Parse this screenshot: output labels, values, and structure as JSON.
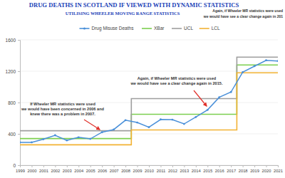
{
  "chart_data": {
    "type": "line",
    "title": "DRUG DEATHS IN SCOTLAND IF VIEWED WITH DYNAMIC STATISTICS",
    "subtitle": "UTILISING WHEELER MOVING RANGE STATISTICS",
    "categories": [
      "1999",
      "2000",
      "2001",
      "2002",
      "2003",
      "2004",
      "2005",
      "2006",
      "2007",
      "2008",
      "2009",
      "2010",
      "2011",
      "2012",
      "2013",
      "2014",
      "2015",
      "2016",
      "2017",
      "2018",
      "2019",
      "2020",
      "2021"
    ],
    "series": [
      {
        "name": "Drug Misuse Deaths",
        "color": "#4a90d9",
        "marker": "circle",
        "values": [
          291,
          292,
          332,
          382,
          317,
          356,
          336,
          421,
          455,
          574,
          545,
          485,
          584,
          581,
          527,
          614,
          706,
          867,
          934,
          1187,
          1264,
          1339,
          1330
        ]
      },
      {
        "name": "XBar",
        "color": "#7ccf4f",
        "line_style": "step",
        "values": [
          340,
          340,
          340,
          340,
          340,
          340,
          340,
          340,
          340,
          340,
          650,
          650,
          650,
          650,
          650,
          650,
          650,
          650,
          650,
          1280,
          1280,
          1280,
          1280
        ]
      },
      {
        "name": "UCL",
        "color": "#9e9e9e",
        "line_style": "step",
        "values": [
          440,
          440,
          440,
          440,
          440,
          440,
          440,
          440,
          440,
          440,
          850,
          850,
          850,
          850,
          850,
          850,
          850,
          850,
          850,
          1380,
          1380,
          1380,
          1380
        ]
      },
      {
        "name": "LCL",
        "color": "#f2b233",
        "line_style": "step",
        "values": [
          260,
          260,
          260,
          260,
          260,
          260,
          260,
          260,
          260,
          260,
          450,
          450,
          450,
          450,
          450,
          450,
          450,
          450,
          450,
          1180,
          1180,
          1180,
          1180
        ]
      }
    ],
    "ylim": [
      0,
      1600
    ],
    "yticks": [
      0,
      400,
      800,
      1200,
      1600
    ],
    "grid": true,
    "legend": "top",
    "annotations": [
      {
        "lines": [
          "Again, if Wheeler MR statistics were used",
          "we would have see a clear change again in 201"
        ]
      },
      {
        "lines": [
          "If Wheeler MR statistics were used",
          "we would have been concerned in 2006 and",
          "knew there was a problem in 2007."
        ]
      },
      {
        "lines": [
          "Again, if Wheeler MR statistics were used",
          "we would have see a clear change again in 2015."
        ]
      }
    ]
  }
}
